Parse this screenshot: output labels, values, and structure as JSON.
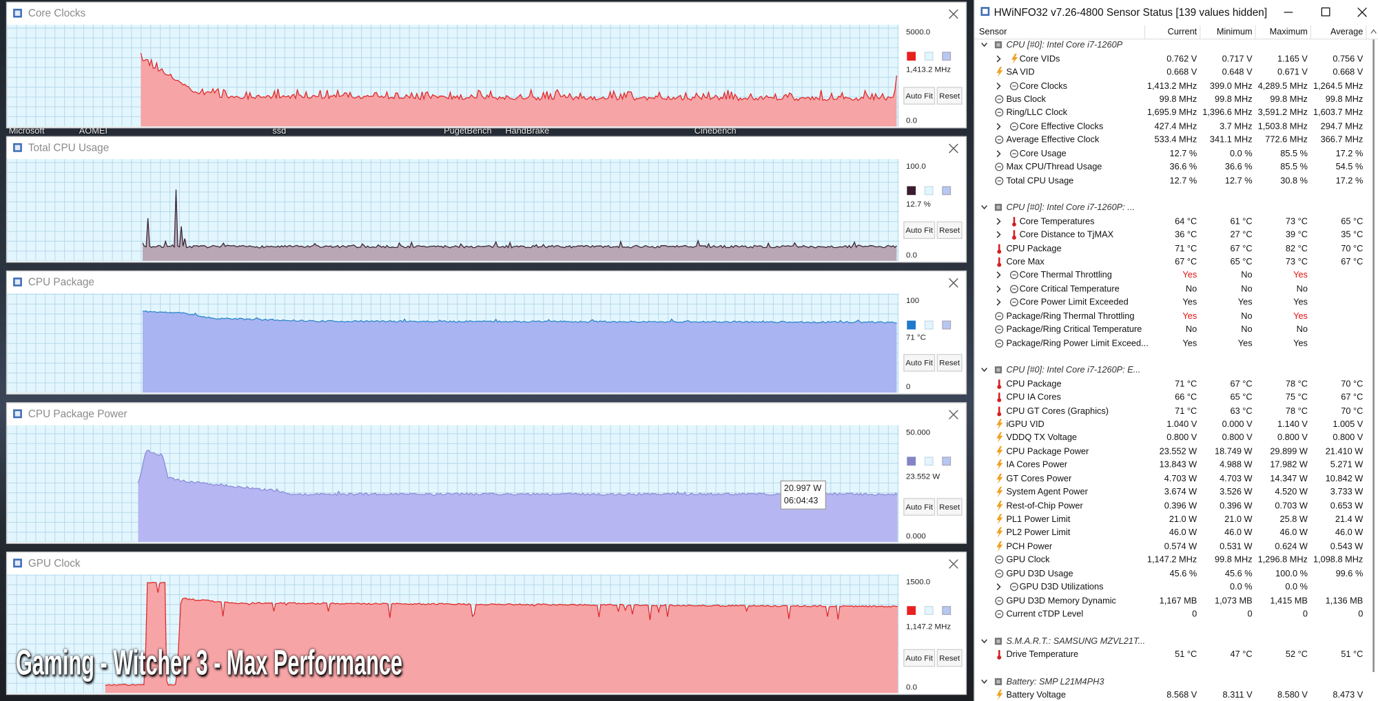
{
  "desktop": {
    "icon_labels": [
      "Microsoft",
      "AOMEI",
      "ssd",
      "PugetBench",
      "HandBrake",
      "Cinebench"
    ]
  },
  "graph_buttons": [
    "Auto Fit",
    "Reset"
  ],
  "graph_windows": [
    {
      "title": "Core Clocks",
      "max": "5000.0",
      "current": "1,413.2 MHz",
      "min": "0.0",
      "color": "#e82020",
      "line": "#e02828",
      "fill": "#f6a4a6"
    },
    {
      "title": "Total CPU Usage",
      "max": "100.0",
      "current": "12.7 %",
      "min": "0.0",
      "color": "#3a1c2e",
      "line": "#3a2434",
      "fill": "#b9a7b5"
    },
    {
      "title": "CPU Package",
      "max": "100",
      "current": "71 °C",
      "min": "0",
      "color": "#1e78cc",
      "line": "#2a86c8",
      "fill": "#a9b4f2"
    },
    {
      "title": "CPU Package Power",
      "max": "50.000",
      "current": "23.552 W",
      "min": "0.000",
      "color": "#8484c6",
      "line": "#8c8cd6",
      "fill": "#b5b6f2"
    },
    {
      "title": "GPU Clock",
      "max": "1500.0",
      "current": "1,147.2 MHz",
      "min": "0.0",
      "color": "#e82020",
      "line": "#e02828",
      "fill": "#f6a4a6"
    }
  ],
  "tooltip": {
    "value": "20.997 W",
    "time": "06:04:43"
  },
  "caption": "Gaming - Witcher 3 - Max Performance",
  "sensor_window": {
    "title": "HWiNFO32 v7.26-4800 Sensor Status [139 values hidden]",
    "columns": [
      "Sensor",
      "Current",
      "Minimum",
      "Maximum",
      "Average"
    ],
    "rows": [
      {
        "group": "CPU [#0]: Intel Core i7-1260P"
      },
      {
        "label": "Core VIDs",
        "expandable": true,
        "values": [
          "0.762 V",
          "0.717 V",
          "1.165 V",
          "0.756 V"
        ]
      },
      {
        "label": "SA VID",
        "values": [
          "0.668 V",
          "0.648 V",
          "0.671 V",
          "0.668 V"
        ]
      },
      {
        "label": "Core Clocks",
        "expandable": true,
        "values": [
          "1,413.2 MHz",
          "399.0 MHz",
          "4,289.5 MHz",
          "1,264.5 MHz"
        ]
      },
      {
        "label": "Bus Clock",
        "values": [
          "99.8 MHz",
          "99.8 MHz",
          "99.8 MHz",
          "99.8 MHz"
        ]
      },
      {
        "label": "Ring/LLC Clock",
        "values": [
          "1,695.9 MHz",
          "1,396.6 MHz",
          "3,591.2 MHz",
          "1,603.7 MHz"
        ]
      },
      {
        "label": "Core Effective Clocks",
        "expandable": true,
        "values": [
          "427.4 MHz",
          "3.7 MHz",
          "1,503.8 MHz",
          "294.7 MHz"
        ]
      },
      {
        "label": "Average Effective Clock",
        "values": [
          "533.4 MHz",
          "341.1 MHz",
          "772.6 MHz",
          "366.7 MHz"
        ]
      },
      {
        "label": "Core Usage",
        "expandable": true,
        "values": [
          "12.7 %",
          "0.0 %",
          "85.5 %",
          "17.2 %"
        ]
      },
      {
        "label": "Max CPU/Thread Usage",
        "values": [
          "36.6 %",
          "36.6 %",
          "85.5 %",
          "54.5 %"
        ]
      },
      {
        "label": "Total CPU Usage",
        "values": [
          "12.7 %",
          "12.7 %",
          "30.8 %",
          "17.2 %"
        ]
      },
      null,
      {
        "group": "CPU [#0]: Intel Core i7-1260P: ..."
      },
      {
        "label": "Core Temperatures",
        "expandable": true,
        "values": [
          "64 °C",
          "61 °C",
          "73 °C",
          "65 °C"
        ]
      },
      {
        "label": "Core Distance to TjMAX",
        "expandable": true,
        "values": [
          "36 °C",
          "27 °C",
          "39 °C",
          "35 °C"
        ]
      },
      {
        "label": "CPU Package",
        "values": [
          "71 °C",
          "67 °C",
          "82 °C",
          "70 °C"
        ]
      },
      {
        "label": "Core Max",
        "values": [
          "67 °C",
          "65 °C",
          "73 °C",
          "67 °C"
        ]
      },
      {
        "label": "Core Thermal Throttling",
        "expandable": true,
        "values": [
          "Yes",
          "No",
          "Yes"
        ],
        "red_cells": [
          0,
          2
        ]
      },
      {
        "label": "Core Critical Temperature",
        "expandable": true,
        "values": [
          "No",
          "No",
          "No"
        ]
      },
      {
        "label": "Core Power Limit Exceeded",
        "expandable": true,
        "values": [
          "Yes",
          "Yes",
          "Yes"
        ]
      },
      {
        "label": "Package/Ring Thermal Throttling",
        "values": [
          "Yes",
          "No",
          "Yes"
        ],
        "red_cells": [
          0,
          2
        ]
      },
      {
        "label": "Package/Ring Critical Temperature",
        "values": [
          "No",
          "No",
          "No"
        ]
      },
      {
        "label": "Package/Ring Power Limit Exceed...",
        "values": [
          "Yes",
          "Yes",
          "Yes"
        ]
      },
      null,
      {
        "group": "CPU [#0]: Intel Core i7-1260P: E..."
      },
      {
        "label": "CPU Package",
        "values": [
          "71 °C",
          "67 °C",
          "78 °C",
          "70 °C"
        ]
      },
      {
        "label": "CPU IA Cores",
        "values": [
          "66 °C",
          "65 °C",
          "75 °C",
          "67 °C"
        ]
      },
      {
        "label": "CPU GT Cores (Graphics)",
        "values": [
          "71 °C",
          "63 °C",
          "78 °C",
          "70 °C"
        ]
      },
      {
        "label": "iGPU VID",
        "values": [
          "1.040 V",
          "0.000 V",
          "1.140 V",
          "1.005 V"
        ]
      },
      {
        "label": "VDDQ TX Voltage",
        "values": [
          "0.800 V",
          "0.800 V",
          "0.800 V",
          "0.800 V"
        ]
      },
      {
        "label": "CPU Package Power",
        "values": [
          "23.552 W",
          "18.749 W",
          "29.899 W",
          "21.410 W"
        ]
      },
      {
        "label": "IA Cores Power",
        "values": [
          "13.843 W",
          "4.988 W",
          "17.982 W",
          "5.271 W"
        ]
      },
      {
        "label": "GT Cores Power",
        "values": [
          "4.703 W",
          "4.703 W",
          "14.347 W",
          "10.842 W"
        ]
      },
      {
        "label": "System Agent Power",
        "values": [
          "3.674 W",
          "3.526 W",
          "4.520 W",
          "3.733 W"
        ]
      },
      {
        "label": "Rest-of-Chip Power",
        "values": [
          "0.396 W",
          "0.396 W",
          "0.703 W",
          "0.653 W"
        ]
      },
      {
        "label": "PL1 Power Limit",
        "values": [
          "21.0 W",
          "21.0 W",
          "25.8 W",
          "21.4 W"
        ]
      },
      {
        "label": "PL2 Power Limit",
        "values": [
          "46.0 W",
          "46.0 W",
          "46.0 W",
          "46.0 W"
        ]
      },
      {
        "label": "PCH Power",
        "values": [
          "0.574 W",
          "0.531 W",
          "0.624 W",
          "0.543 W"
        ]
      },
      {
        "label": "GPU Clock",
        "values": [
          "1,147.2 MHz",
          "99.8 MHz",
          "1,296.8 MHz",
          "1,098.8 MHz"
        ]
      },
      {
        "label": "GPU D3D Usage",
        "values": [
          "45.6 %",
          "45.6 %",
          "100.0 %",
          "99.6 %"
        ]
      },
      {
        "label": "GPU D3D Utilizations",
        "expandable": true,
        "values": [
          null,
          "0.0 %",
          "0.0 %"
        ]
      },
      {
        "label": "GPU D3D Memory Dynamic",
        "values": [
          "1,167 MB",
          "1,073 MB",
          "1,415 MB",
          "1,136 MB"
        ]
      },
      {
        "label": "Current cTDP Level",
        "values": [
          "0",
          "0",
          "0",
          "0"
        ]
      },
      null,
      {
        "group": "S.M.A.R.T.: SAMSUNG MZVL21T..."
      },
      {
        "label": "Drive Temperature",
        "values": [
          "51 °C",
          "47 °C",
          "52 °C",
          "51 °C"
        ]
      },
      null,
      {
        "group": "Battery: SMP L21M4PH3"
      },
      {
        "label": "Battery Voltage",
        "values": [
          "8.568 V",
          "8.311 V",
          "8.580 V",
          "8.473 V"
        ]
      }
    ]
  }
}
